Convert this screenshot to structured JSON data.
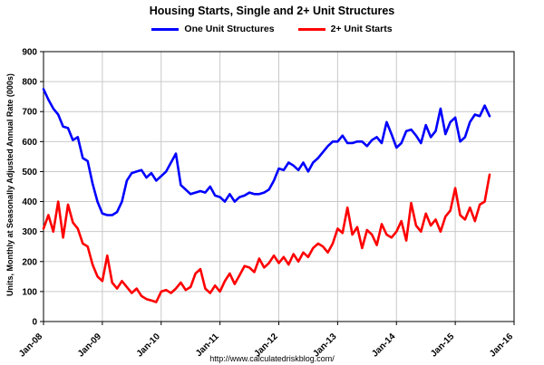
{
  "footer": {
    "url": "http://www.calculatedriskblog.com/"
  },
  "chart_data": {
    "type": "line",
    "title": "Housing Starts, Single and 2+ Unit Structures",
    "xlabel": "",
    "ylabel": "Units, Monthly at Seasonally Adjusted Annual Rate (000s)",
    "ylim": [
      0,
      900
    ],
    "y_step": 100,
    "grid": true,
    "legend_position": "top",
    "x_ticks": [
      "Jan-08",
      "Jan-09",
      "Jan-10",
      "Jan-11",
      "Jan-12",
      "Jan-13",
      "Jan-14",
      "Jan-15",
      "Jan-16"
    ],
    "months": [
      "Jan-08",
      "Feb-08",
      "Mar-08",
      "Apr-08",
      "May-08",
      "Jun-08",
      "Jul-08",
      "Aug-08",
      "Sep-08",
      "Oct-08",
      "Nov-08",
      "Dec-08",
      "Jan-09",
      "Feb-09",
      "Mar-09",
      "Apr-09",
      "May-09",
      "Jun-09",
      "Jul-09",
      "Aug-09",
      "Sep-09",
      "Oct-09",
      "Nov-09",
      "Dec-09",
      "Jan-10",
      "Feb-10",
      "Mar-10",
      "Apr-10",
      "May-10",
      "Jun-10",
      "Jul-10",
      "Aug-10",
      "Sep-10",
      "Oct-10",
      "Nov-10",
      "Dec-10",
      "Jan-11",
      "Feb-11",
      "Mar-11",
      "Apr-11",
      "May-11",
      "Jun-11",
      "Jul-11",
      "Aug-11",
      "Sep-11",
      "Oct-11",
      "Nov-11",
      "Dec-11",
      "Jan-12",
      "Feb-12",
      "Mar-12",
      "Apr-12",
      "May-12",
      "Jun-12",
      "Jul-12",
      "Aug-12",
      "Sep-12",
      "Oct-12",
      "Nov-12",
      "Dec-12",
      "Jan-13",
      "Feb-13",
      "Mar-13",
      "Apr-13",
      "May-13",
      "Jun-13",
      "Jul-13",
      "Aug-13",
      "Sep-13",
      "Oct-13",
      "Nov-13",
      "Dec-13",
      "Jan-14",
      "Feb-14",
      "Mar-14",
      "Apr-14",
      "May-14",
      "Jun-14",
      "Jul-14",
      "Aug-14",
      "Sep-14",
      "Oct-14",
      "Nov-14",
      "Dec-14",
      "Jan-15",
      "Feb-15",
      "Mar-15",
      "Apr-15",
      "May-15",
      "Jun-15",
      "Jul-15",
      "Aug-15"
    ],
    "series": [
      {
        "id": "one-unit",
        "name": "One Unit Structures",
        "color": "#0000ff",
        "values": [
          775,
          740,
          710,
          690,
          650,
          645,
          605,
          615,
          545,
          535,
          460,
          400,
          360,
          355,
          355,
          365,
          400,
          470,
          495,
          500,
          505,
          480,
          495,
          470,
          485,
          500,
          530,
          560,
          455,
          440,
          425,
          430,
          435,
          430,
          450,
          420,
          415,
          400,
          425,
          400,
          415,
          420,
          430,
          425,
          425,
          430,
          440,
          470,
          510,
          505,
          530,
          520,
          505,
          530,
          500,
          530,
          545,
          565,
          585,
          600,
          600,
          620,
          595,
          595,
          600,
          600,
          585,
          605,
          615,
          595,
          665,
          625,
          580,
          595,
          635,
          640,
          620,
          595,
          655,
          615,
          635,
          710,
          625,
          665,
          680,
          600,
          615,
          665,
          690,
          685,
          720,
          685
        ]
      },
      {
        "id": "two-plus-unit",
        "name": "2+ Unit Starts",
        "color": "#ff0000",
        "values": [
          310,
          355,
          300,
          400,
          280,
          390,
          330,
          310,
          260,
          250,
          190,
          150,
          135,
          220,
          130,
          110,
          135,
          115,
          95,
          110,
          85,
          75,
          70,
          65,
          100,
          105,
          95,
          110,
          130,
          105,
          115,
          160,
          175,
          110,
          95,
          120,
          100,
          135,
          160,
          125,
          155,
          185,
          180,
          165,
          210,
          180,
          195,
          220,
          195,
          215,
          190,
          225,
          200,
          230,
          215,
          245,
          260,
          250,
          230,
          260,
          310,
          295,
          380,
          290,
          315,
          245,
          305,
          290,
          255,
          325,
          290,
          280,
          300,
          335,
          270,
          395,
          320,
          300,
          360,
          320,
          340,
          300,
          350,
          370,
          445,
          355,
          340,
          380,
          335,
          390,
          400,
          490
        ]
      }
    ]
  }
}
